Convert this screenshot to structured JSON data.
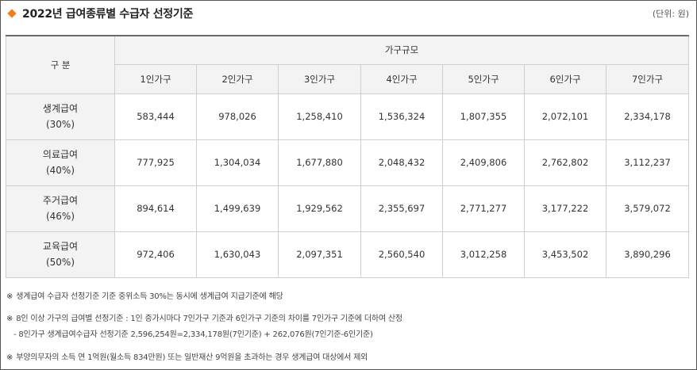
{
  "header": {
    "title": "2022년 급여종류별 수급자 선정기준",
    "unit": "(단위: 원)"
  },
  "table": {
    "corner": "구 분",
    "group_header": "가구규모",
    "columns": [
      "1인가구",
      "2인가구",
      "3인가구",
      "4인가구",
      "5인가구",
      "6인가구",
      "7인가구"
    ],
    "rows": [
      {
        "name": "생계급여",
        "pct": "(30%)",
        "values": [
          "583,444",
          "978,026",
          "1,258,410",
          "1,536,324",
          "1,807,355",
          "2,072,101",
          "2,334,178"
        ]
      },
      {
        "name": "의료급여",
        "pct": "(40%)",
        "values": [
          "777,925",
          "1,304,034",
          "1,677,880",
          "2,048,432",
          "2,409,806",
          "2,762,802",
          "3,112,237"
        ]
      },
      {
        "name": "주거급여",
        "pct": "(46%)",
        "values": [
          "894,614",
          "1,499,639",
          "1,929,562",
          "2,355,697",
          "2,771,277",
          "3,177,222",
          "3,579,072"
        ]
      },
      {
        "name": "교육급여",
        "pct": "(50%)",
        "values": [
          "972,406",
          "1,630,043",
          "2,097,351",
          "2,560,540",
          "3,012,258",
          "3,453,502",
          "3,890,296"
        ]
      }
    ]
  },
  "notes": {
    "mark": "※",
    "n1": "생계급여 수급자 선정기준 기준 중위소득 30%는 동시에 생계급여 지급기준에 해당",
    "n2": "8인 이상 가구의 급여별 선정기준 : 1인 증가시마다 7인가구 기준과 6인가구 기준의 차이를 7인가구 기준에 더하여 산정",
    "n2b": "- 8인가구 생계급여수급자 선정기준 2,596,254원=2,334,178원(7인기준) + 262,076원(7인기준-6인기준)",
    "n3": "부양의무자의 소득 연 1억원(월소득 834만원) 또는 일반재산 9억원을 초과하는 경우 생계급여 대상에서 제외"
  },
  "colors": {
    "accent": "#f07c1a",
    "header_bg": "#f3f3f3",
    "border": "#cfcfcf"
  },
  "icons": {
    "bullet": "diamond-bullet-icon"
  }
}
